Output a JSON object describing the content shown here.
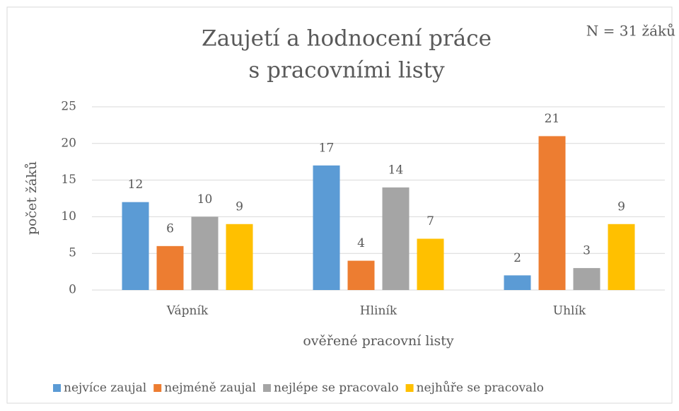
{
  "chart_data": {
    "type": "bar",
    "title": [
      "Zaujetí a hodnocení práce",
      "s pracovními listy"
    ],
    "annotation": "N = 31 žáků",
    "x_label": "ověřené pracovní listy",
    "y_label": "počet žáků",
    "categories": [
      "Vápník",
      "Hliník",
      "Uhlík"
    ],
    "series": [
      {
        "name": "nejvíce zaujal",
        "color": "#5b9bd5",
        "values": [
          12,
          17,
          2
        ]
      },
      {
        "name": "nejméně zaujal",
        "color": "#ed7d31",
        "values": [
          6,
          4,
          21
        ]
      },
      {
        "name": "nejlépe se pracovalo",
        "color": "#a5a5a5",
        "values": [
          10,
          14,
          3
        ]
      },
      {
        "name": "nejhůře se pracovalo",
        "color": "#ffc000",
        "values": [
          9,
          7,
          9
        ]
      }
    ],
    "ylim": [
      0,
      25
    ],
    "yticks": [
      0,
      5,
      10,
      15,
      20,
      25
    ],
    "grid": true,
    "legend": "bottom"
  }
}
